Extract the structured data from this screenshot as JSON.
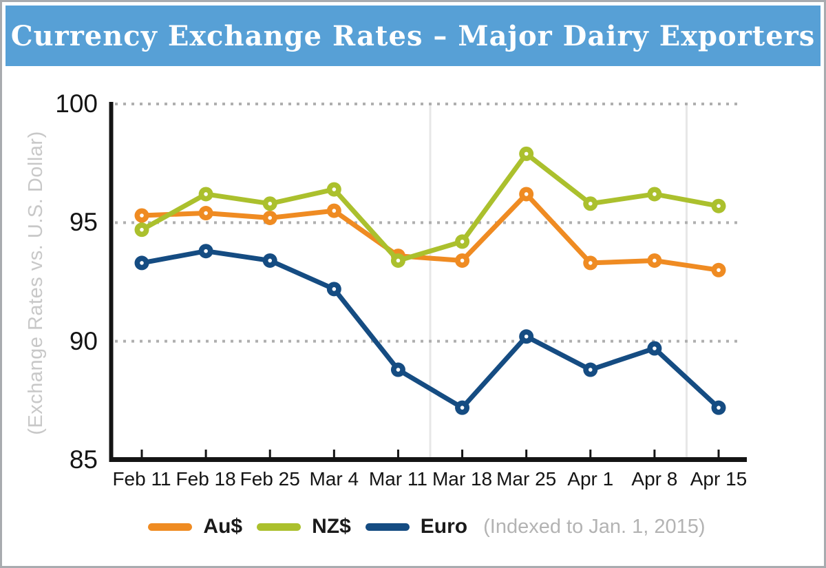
{
  "header": {
    "bg_color": "#57a0d6",
    "text_color": "#ffffff"
  },
  "chart_data": {
    "type": "line",
    "title": "Currency Exchange Rates – Major Dairy Exporters",
    "ylabel": "(Exchange Rates vs. U.S. Dollar)",
    "note": "(Indexed to Jan. 1, 2015)",
    "categories": [
      "Feb 11",
      "Feb 18",
      "Feb 25",
      "Mar 4",
      "Mar 11",
      "Mar 18",
      "Mar 25",
      "Apr 1",
      "Apr 8",
      "Apr 15"
    ],
    "yticks": [
      100,
      95,
      90,
      85
    ],
    "gridline_values": [
      100,
      95,
      90
    ],
    "ylim": [
      85,
      100
    ],
    "grid": "horizontal-dotted",
    "legend_position": "bottom",
    "separators_between": [
      [
        "Mar 11",
        "Mar 18"
      ],
      [
        "Apr 8",
        "Apr 15"
      ]
    ],
    "series": [
      {
        "name": "Au$",
        "color": "#ef8b22",
        "values": [
          95.3,
          95.4,
          95.2,
          95.5,
          93.6,
          93.4,
          96.2,
          93.3,
          93.4,
          93.0
        ]
      },
      {
        "name": "NZ$",
        "color": "#abc02d",
        "values": [
          94.7,
          96.2,
          95.8,
          96.4,
          93.4,
          94.2,
          97.9,
          95.8,
          96.2,
          95.7
        ]
      },
      {
        "name": "Euro",
        "color": "#154c82",
        "values": [
          93.3,
          93.8,
          93.4,
          92.2,
          88.8,
          87.2,
          90.2,
          88.8,
          89.7,
          87.2
        ]
      }
    ]
  }
}
